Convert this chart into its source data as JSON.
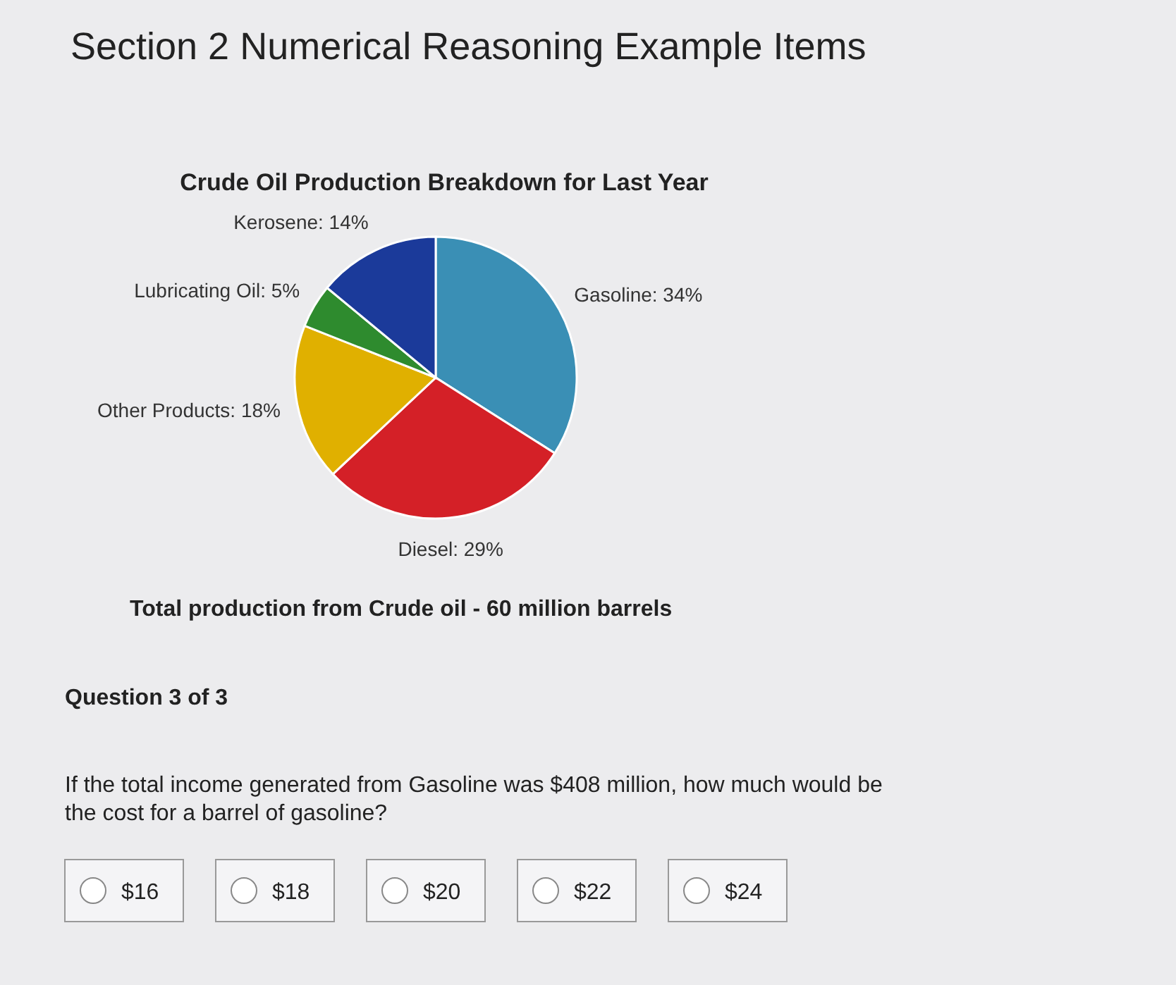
{
  "chart_data": {
    "type": "pie",
    "title": "Section 2 Numerical Reasoning Example Items",
    "subtitle": "Crude Oil Production Breakdown for Last Year",
    "categories": [
      "Gasoline",
      "Diesel",
      "Other Products",
      "Lubricating Oil",
      "Kerosene"
    ],
    "values": [
      34,
      29,
      18,
      5,
      14
    ],
    "value_labels": [
      "34%",
      "29%",
      "18%",
      "5%",
      "14%"
    ],
    "colors": [
      "#3a8fb5",
      "#d42027",
      "#e0b000",
      "#2e8b2e",
      "#1b3a9a"
    ],
    "annotations": [
      "Total production from Crude oil - 60 million barrels",
      "Question 3 of 3",
      "If the total income generated from Gasoline was $408 million, how much would be the cost for a barrel of gasoline?",
      "$16",
      "$18",
      "$20",
      "$22",
      "$24"
    ]
  }
}
